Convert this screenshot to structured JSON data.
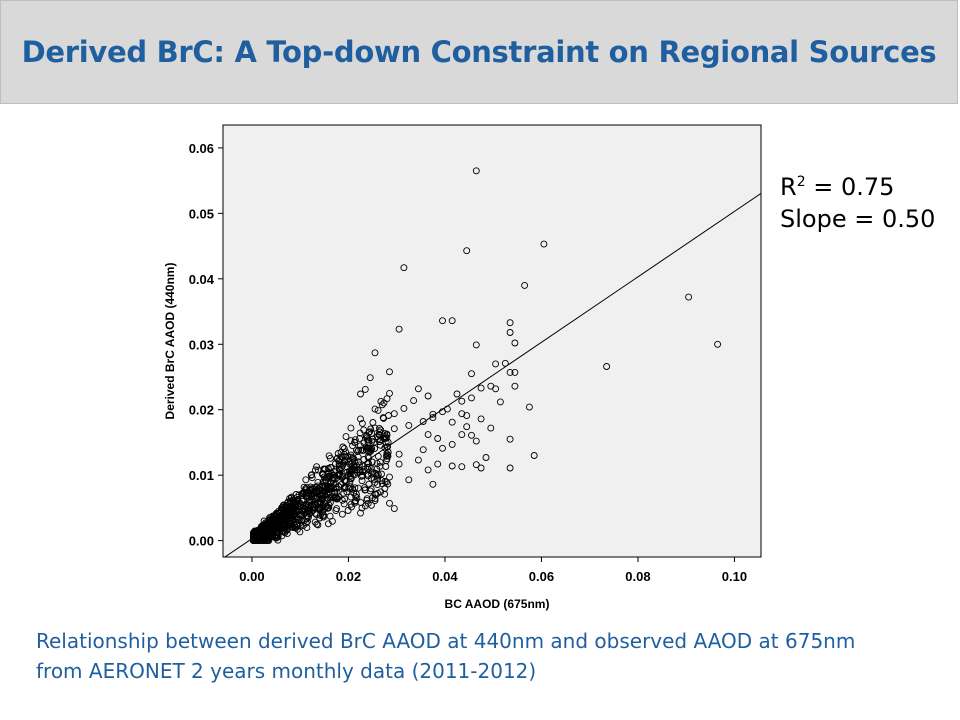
{
  "header": {
    "title": "Derived BrC: A Top-down Constraint on Regional Sources"
  },
  "stats": {
    "r2_label": "R",
    "r2_sup": "2",
    "r2_value": " = 0.75",
    "slope": "Slope = 0.50"
  },
  "caption": {
    "line1": "Relationship between derived BrC AAOD at 440nm and observed AAOD at 675nm",
    "line2": "from AERONET 2 years monthly data (2011-2012)"
  },
  "chart_data": {
    "type": "scatter",
    "xlabel": "BC AAOD (675nm)",
    "ylabel": "Derived BrC AAOD (440nm)",
    "xlim": [
      -0.006,
      0.1055
    ],
    "ylim": [
      -0.0025,
      0.0635
    ],
    "xticks": [
      "0.00",
      "0.02",
      "0.04",
      "0.06",
      "0.08",
      "0.10"
    ],
    "yticks": [
      "0.00",
      "0.01",
      "0.02",
      "0.03",
      "0.04",
      "0.05",
      "0.06"
    ],
    "grid": false,
    "plot_background": "#f0f0f0",
    "fit_line": {
      "intercept": 0.0003,
      "slope": 0.5
    },
    "points": [
      [
        0.0465,
        0.0565
      ],
      [
        0.0605,
        0.0453
      ],
      [
        0.0445,
        0.0443
      ],
      [
        0.0315,
        0.0417
      ],
      [
        0.0565,
        0.039
      ],
      [
        0.0905,
        0.0372
      ],
      [
        0.0395,
        0.0336
      ],
      [
        0.0415,
        0.0336
      ],
      [
        0.0535,
        0.0333
      ],
      [
        0.0305,
        0.0323
      ],
      [
        0.0535,
        0.0318
      ],
      [
        0.0545,
        0.0302
      ],
      [
        0.0965,
        0.03
      ],
      [
        0.0465,
        0.0299
      ],
      [
        0.0255,
        0.0287
      ],
      [
        0.0735,
        0.0266
      ],
      [
        0.0525,
        0.0271
      ],
      [
        0.0505,
        0.027
      ],
      [
        0.0455,
        0.0255
      ],
      [
        0.0535,
        0.0257
      ],
      [
        0.0545,
        0.0257
      ],
      [
        0.0495,
        0.0236
      ],
      [
        0.0475,
        0.0233
      ],
      [
        0.0545,
        0.0236
      ],
      [
        0.0505,
        0.0232
      ],
      [
        0.0425,
        0.0224
      ],
      [
        0.0365,
        0.0221
      ],
      [
        0.0435,
        0.0213
      ],
      [
        0.0455,
        0.0218
      ],
      [
        0.0515,
        0.0212
      ],
      [
        0.0575,
        0.0204
      ],
      [
        0.0395,
        0.0197
      ],
      [
        0.0405,
        0.0201
      ],
      [
        0.0375,
        0.0193
      ],
      [
        0.0435,
        0.0194
      ],
      [
        0.0445,
        0.0191
      ],
      [
        0.0475,
        0.0186
      ],
      [
        0.0415,
        0.0181
      ],
      [
        0.0445,
        0.0174
      ],
      [
        0.0495,
        0.0172
      ],
      [
        0.0435,
        0.0162
      ],
      [
        0.0455,
        0.0161
      ],
      [
        0.0535,
        0.0155
      ],
      [
        0.0465,
        0.0152
      ],
      [
        0.0585,
        0.013
      ],
      [
        0.0485,
        0.0127
      ],
      [
        0.0435,
        0.0113
      ],
      [
        0.0475,
        0.0111
      ],
      [
        0.0535,
        0.0111
      ],
      [
        0.0385,
        0.0117
      ],
      [
        0.0465,
        0.0116
      ],
      [
        0.0335,
        0.0214
      ],
      [
        0.0315,
        0.0202
      ],
      [
        0.0225,
        0.0224
      ],
      [
        0.0245,
        0.0249
      ],
      [
        0.0285,
        0.0258
      ],
      [
        0.0345,
        0.0232
      ],
      [
        0.0285,
        0.0225
      ],
      [
        0.0235,
        0.0231
      ],
      [
        0.0255,
        0.0201
      ],
      [
        0.0295,
        0.0194
      ],
      [
        0.0375,
        0.0188
      ],
      [
        0.0355,
        0.0182
      ],
      [
        0.0325,
        0.0176
      ],
      [
        0.0365,
        0.0162
      ],
      [
        0.0385,
        0.0156
      ],
      [
        0.0295,
        0.0171
      ],
      [
        0.0265,
        0.0166
      ],
      [
        0.0225,
        0.0186
      ],
      [
        0.0205,
        0.0172
      ],
      [
        0.0195,
        0.0159
      ],
      [
        0.0415,
        0.0147
      ],
      [
        0.0395,
        0.0141
      ],
      [
        0.0355,
        0.0139
      ],
      [
        0.0305,
        0.0132
      ],
      [
        0.0345,
        0.0123
      ],
      [
        0.0305,
        0.0117
      ],
      [
        0.0365,
        0.0108
      ],
      [
        0.0415,
        0.0114
      ],
      [
        0.0285,
        0.0097
      ],
      [
        0.0325,
        0.0093
      ],
      [
        0.0255,
        0.0089
      ],
      [
        0.0375,
        0.0086
      ],
      [
        0.0245,
        0.0076
      ],
      [
        0.0275,
        0.0071
      ],
      [
        0.0285,
        0.0057
      ],
      [
        0.0295,
        0.0049
      ],
      [
        0.0215,
        0.0061
      ],
      [
        0.0235,
        0.0053
      ],
      [
        0.0225,
        0.0042
      ],
      [
        0.0255,
        0.0064
      ]
    ],
    "cluster": {
      "count": 1100,
      "seed": 7,
      "x_max": 0.028,
      "slope": 0.5,
      "fade": 0.006
    }
  }
}
